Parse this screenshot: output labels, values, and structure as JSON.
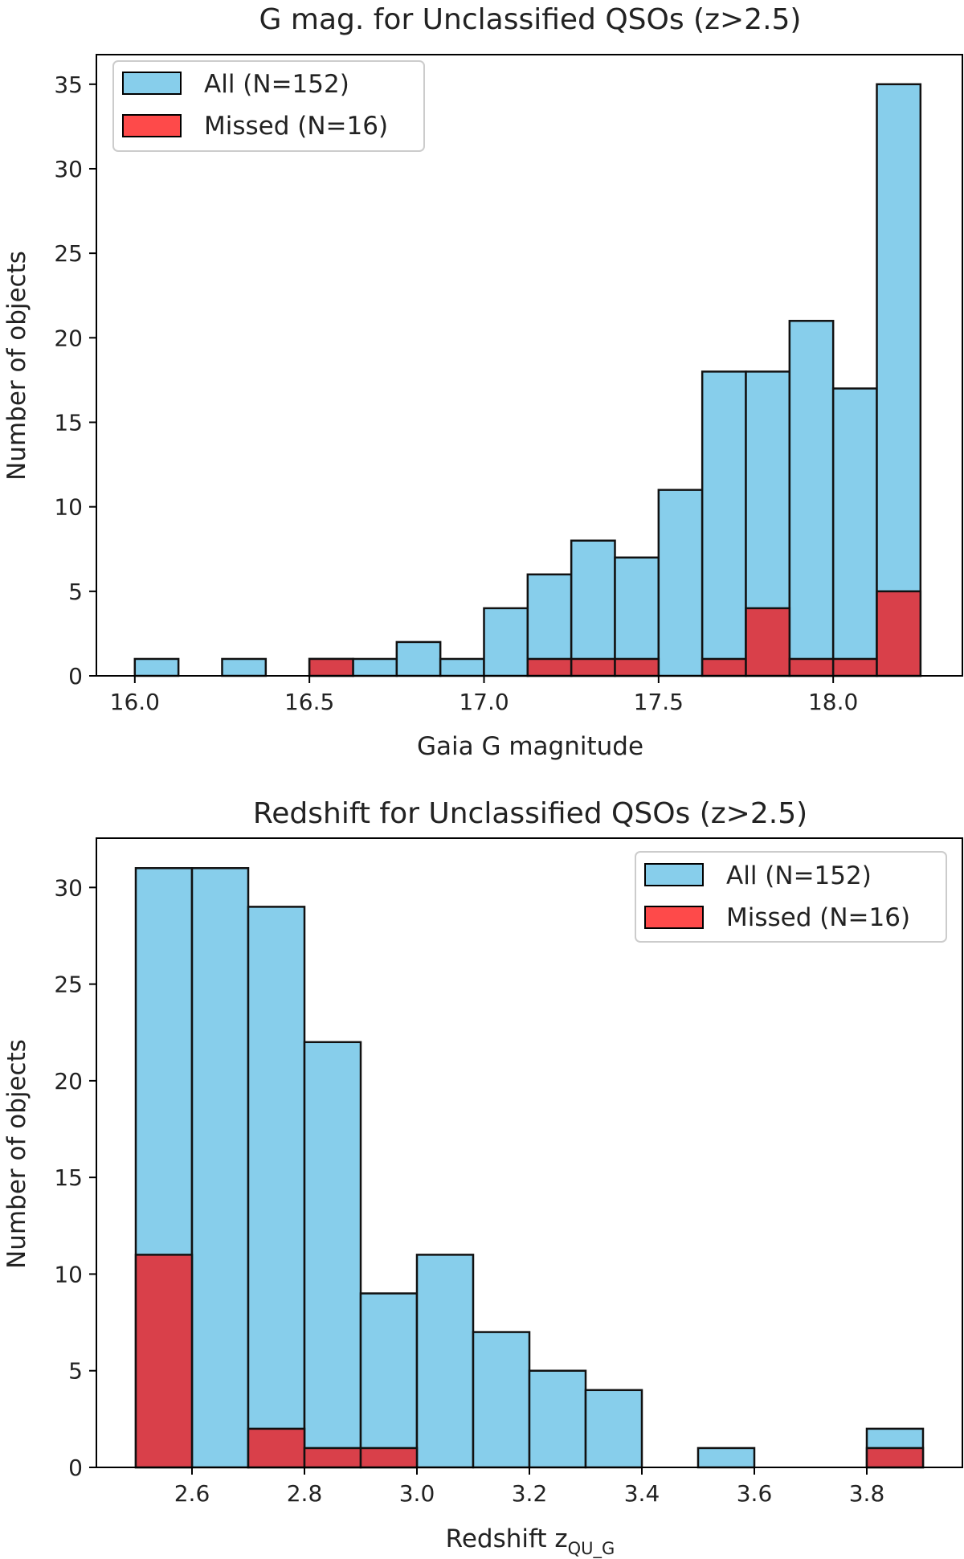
{
  "chart_data": [
    {
      "type": "bar",
      "title": "G mag. for Unclassified QSOs (z>2.5)",
      "xlabel": "Gaia G magnitude",
      "ylabel": "Number of objects",
      "xlim": [
        15.89,
        18.37
      ],
      "ylim": [
        0,
        36.75
      ],
      "xticks": [
        16.0,
        16.5,
        17.0,
        17.5,
        18.0
      ],
      "xtick_labels": [
        "16.0",
        "16.5",
        "17.0",
        "17.5",
        "18.0"
      ],
      "yticks": [
        0,
        5,
        10,
        15,
        20,
        25,
        30,
        35
      ],
      "legend_position": "top-left",
      "bin_edges": [
        16.0,
        16.125,
        16.25,
        16.375,
        16.5,
        16.625,
        16.75,
        16.875,
        17.0,
        17.125,
        17.25,
        17.375,
        17.5,
        17.625,
        17.75,
        17.875,
        18.0,
        18.125,
        18.25
      ],
      "series": [
        {
          "name": "All (N=152)",
          "color": "#87CEEB",
          "values": [
            1,
            0,
            1,
            0,
            1,
            1,
            2,
            1,
            4,
            6,
            8,
            7,
            11,
            18,
            18,
            21,
            17,
            35
          ]
        },
        {
          "name": "Missed (N=16)",
          "color": "#d9404a",
          "values": [
            0,
            0,
            0,
            0,
            1,
            0,
            0,
            0,
            0,
            1,
            1,
            1,
            0,
            1,
            4,
            1,
            1,
            5
          ]
        }
      ]
    },
    {
      "type": "bar",
      "title": "Redshift for Unclassified QSOs (z>2.5)",
      "xlabel": "Redshift z",
      "xlabel_subscript": "QU_G",
      "ylabel": "Number of objects",
      "xlim": [
        2.43,
        3.97
      ],
      "ylim": [
        0,
        32.55
      ],
      "xticks": [
        2.6,
        2.8,
        3.0,
        3.2,
        3.4,
        3.6,
        3.8
      ],
      "xtick_labels": [
        "2.6",
        "2.8",
        "3.0",
        "3.2",
        "3.4",
        "3.6",
        "3.8"
      ],
      "yticks": [
        0,
        5,
        10,
        15,
        20,
        25,
        30
      ],
      "legend_position": "top-right",
      "bin_edges": [
        2.5,
        2.6,
        2.7,
        2.8,
        2.9,
        3.0,
        3.1,
        3.2,
        3.3,
        3.4,
        3.5,
        3.6,
        3.7,
        3.8,
        3.9
      ],
      "series": [
        {
          "name": "All (N=152)",
          "color": "#87CEEB",
          "values": [
            31,
            31,
            29,
            22,
            9,
            11,
            7,
            5,
            4,
            0,
            1,
            0,
            0,
            2
          ]
        },
        {
          "name": "Missed (N=16)",
          "color": "#d9404a",
          "values": [
            11,
            0,
            2,
            1,
            1,
            0,
            0,
            0,
            0,
            0,
            0,
            0,
            0,
            1
          ]
        }
      ]
    }
  ]
}
